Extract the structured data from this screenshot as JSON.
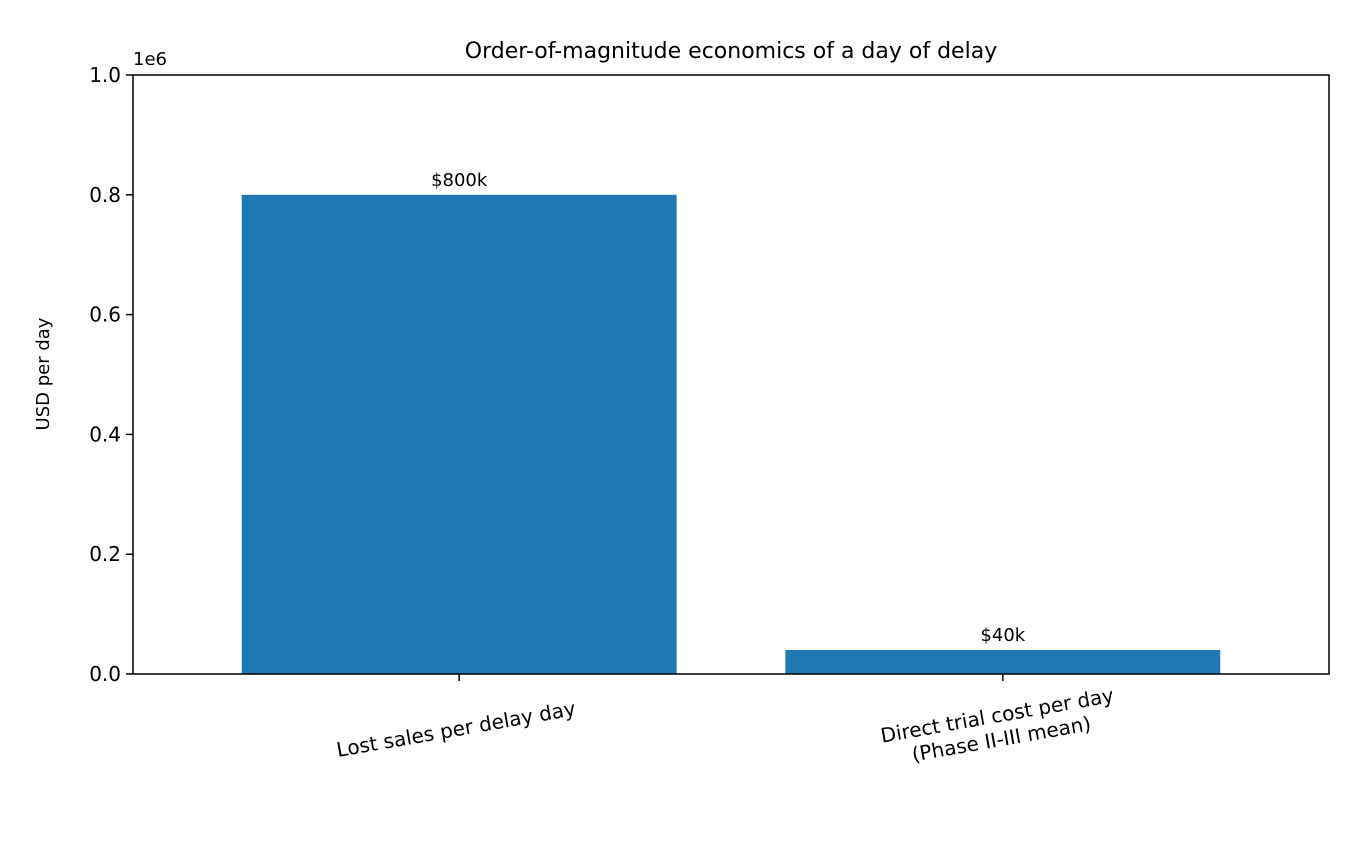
{
  "chart_data": {
    "type": "bar",
    "title": "Order-of-magnitude economics of a day of delay",
    "ylabel": "USD per day",
    "xlabel": "",
    "categories": [
      [
        "Lost sales per delay day"
      ],
      [
        "Direct trial cost per day",
        "(Phase II-III mean)"
      ]
    ],
    "values": [
      800000,
      40000
    ],
    "data_labels": [
      "$800k",
      "$40k"
    ],
    "ylim": [
      0,
      1000000
    ],
    "yticks": [
      0,
      200000,
      400000,
      600000,
      800000,
      1000000
    ],
    "ytick_labels": [
      "0.0",
      "0.2",
      "0.4",
      "0.6",
      "0.8",
      "1.0"
    ],
    "y_offset_label": "1e6",
    "bar_color": "#1f77b4",
    "grid": false,
    "xtick_rotation_deg": -10
  }
}
